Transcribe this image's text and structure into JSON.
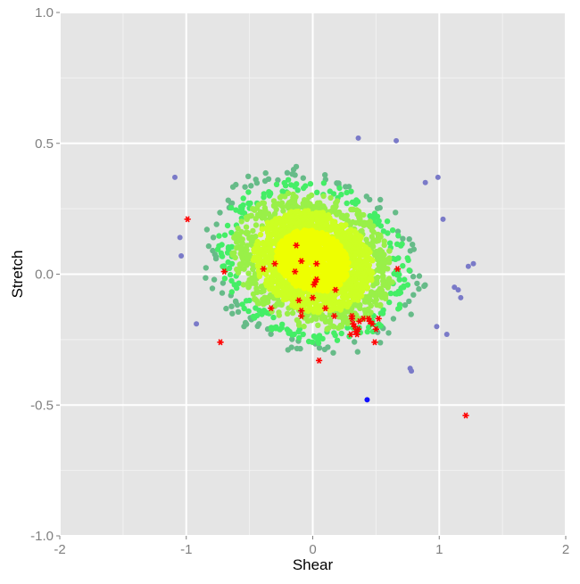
{
  "chart_data": {
    "type": "scatter",
    "title": "",
    "xlabel": "Shear",
    "ylabel": "Stretch",
    "xlim": [
      -2,
      2
    ],
    "ylim": [
      -1,
      1
    ],
    "x_ticks": [
      -2,
      -1,
      0,
      1,
      2
    ],
    "x_tick_labels": [
      "-2",
      "-1",
      "0",
      "1",
      "2"
    ],
    "y_ticks": [
      -1,
      -0.5,
      0,
      0.5,
      1
    ],
    "y_tick_labels": [
      "-1.0",
      "-0.5",
      "0.0",
      "0.5",
      "1.0"
    ],
    "grid": true,
    "colors": {
      "panel": "#e5e5e5",
      "grid_major": "#ffffff",
      "grid_minor": "#f2f2f2",
      "core": "#eeff00",
      "inner": "#ccff22",
      "middle": "#99f048",
      "outer": "#44ee66",
      "edge": "#66bb88",
      "outlier": "#7a7ac8",
      "extreme": "#1010ff",
      "highlight": "#ff0000"
    },
    "cloud": {
      "description_note": "dense cloud of points colored by density, yellow at the core fading to green and blue at the edges",
      "center": [
        0.0,
        0.05
      ],
      "spread": [
        0.32,
        0.13
      ]
    },
    "series": [
      {
        "marker": "dot",
        "color": "#7a7ac8",
        "points": [
          [
            -1.09,
            0.37
          ],
          [
            -1.05,
            0.14
          ],
          [
            -1.04,
            0.07
          ],
          [
            -0.92,
            -0.19
          ],
          [
            0.66,
            0.51
          ],
          [
            0.89,
            0.35
          ],
          [
            0.99,
            0.37
          ],
          [
            1.03,
            0.21
          ],
          [
            1.23,
            0.03
          ],
          [
            1.27,
            0.04
          ],
          [
            1.12,
            -0.05
          ],
          [
            1.15,
            -0.06
          ],
          [
            1.17,
            -0.09
          ],
          [
            1.06,
            -0.23
          ],
          [
            0.98,
            -0.2
          ],
          [
            0.77,
            -0.36
          ],
          [
            0.78,
            -0.37
          ],
          [
            0.36,
            0.52
          ]
        ]
      },
      {
        "marker": "dot",
        "color": "#1010ff",
        "points": [
          [
            0.43,
            -0.48
          ]
        ]
      },
      {
        "marker": "asterisk",
        "color": "#ff0000",
        "points": [
          [
            -0.99,
            0.21
          ],
          [
            -0.7,
            0.01
          ],
          [
            -0.73,
            -0.26
          ],
          [
            -0.39,
            0.02
          ],
          [
            -0.3,
            0.04
          ],
          [
            -0.33,
            -0.13
          ],
          [
            -0.13,
            0.11
          ],
          [
            -0.14,
            0.01
          ],
          [
            -0.09,
            0.05
          ],
          [
            -0.11,
            -0.1
          ],
          [
            -0.09,
            -0.14
          ],
          [
            -0.09,
            -0.16
          ],
          [
            0.03,
            0.04
          ],
          [
            0.02,
            -0.03
          ],
          [
            0.03,
            -0.02
          ],
          [
            0.01,
            -0.04
          ],
          [
            0.0,
            -0.09
          ],
          [
            0.1,
            -0.13
          ],
          [
            0.17,
            -0.16
          ],
          [
            0.18,
            -0.06
          ],
          [
            0.05,
            -0.33
          ],
          [
            0.31,
            -0.16
          ],
          [
            0.31,
            -0.17
          ],
          [
            0.32,
            -0.19
          ],
          [
            0.33,
            -0.2
          ],
          [
            0.34,
            -0.22
          ],
          [
            0.35,
            -0.23
          ],
          [
            0.36,
            -0.21
          ],
          [
            0.37,
            -0.18
          ],
          [
            0.3,
            -0.23
          ],
          [
            0.44,
            -0.17
          ],
          [
            0.45,
            -0.18
          ],
          [
            0.47,
            -0.19
          ],
          [
            0.5,
            -0.21
          ],
          [
            0.49,
            -0.26
          ],
          [
            0.52,
            -0.17
          ],
          [
            0.67,
            0.02
          ],
          [
            1.21,
            -0.54
          ],
          [
            0.4,
            -0.17
          ]
        ]
      }
    ]
  }
}
